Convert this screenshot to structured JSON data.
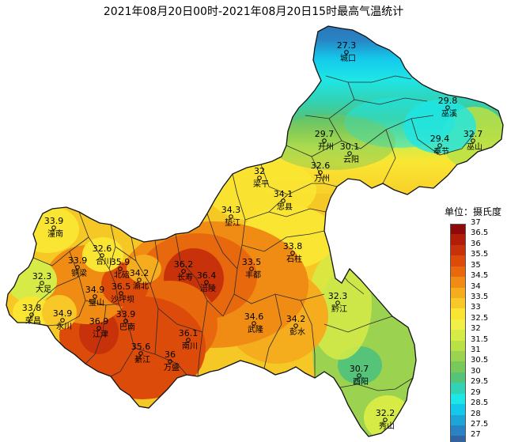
{
  "title": "2021年08月20日00时-2021年08月20日15时最高气温统计",
  "legend": {
    "title": "单位：摄氏度",
    "items": [
      {
        "label": "37",
        "color": "#8c0a0a"
      },
      {
        "label": "36.5",
        "color": "#b01e0a"
      },
      {
        "label": "36",
        "color": "#c8320a"
      },
      {
        "label": "35.5",
        "color": "#dc4b0a"
      },
      {
        "label": "35",
        "color": "#e8690d"
      },
      {
        "label": "34.5",
        "color": "#f08c14"
      },
      {
        "label": "34",
        "color": "#f5ad1e"
      },
      {
        "label": "33.5",
        "color": "#f8c828"
      },
      {
        "label": "33",
        "color": "#fae632"
      },
      {
        "label": "32.5",
        "color": "#f0f046"
      },
      {
        "label": "32",
        "color": "#d7eb46"
      },
      {
        "label": "31.5",
        "color": "#b9e146"
      },
      {
        "label": "31",
        "color": "#9bd250"
      },
      {
        "label": "30.5",
        "color": "#78c85a"
      },
      {
        "label": "30",
        "color": "#55c378"
      },
      {
        "label": "29.5",
        "color": "#32d2b4"
      },
      {
        "label": "29",
        "color": "#1ee6e6"
      },
      {
        "label": "28.5",
        "color": "#14c8eb"
      },
      {
        "label": "28",
        "color": "#1ea5d7"
      },
      {
        "label": "27.5",
        "color": "#2882c3"
      },
      {
        "label": "27",
        "color": "#3264a0"
      }
    ]
  },
  "stations": [
    {
      "name": "城口",
      "value": "27.3"
    },
    {
      "name": "巫溪",
      "value": "29.8"
    },
    {
      "name": "开州",
      "value": "29.7"
    },
    {
      "name": "巫山",
      "value": "32.7"
    },
    {
      "name": "奉节",
      "value": "29.4"
    },
    {
      "name": "云阳",
      "value": "30.1"
    },
    {
      "name": "万州",
      "value": "32.6"
    },
    {
      "name": "梁平",
      "value": "32"
    },
    {
      "name": "垫江",
      "value": "34.3"
    },
    {
      "name": "忠县",
      "value": "34.1"
    },
    {
      "name": "石柱",
      "value": "33.8"
    },
    {
      "name": "丰都",
      "value": "33.5"
    },
    {
      "name": "长寿",
      "value": "36.2"
    },
    {
      "name": "涪陵",
      "value": "36.4"
    },
    {
      "name": "潼南",
      "value": "33.9"
    },
    {
      "name": "合川",
      "value": "32.6"
    },
    {
      "name": "铜梁",
      "value": "33.9"
    },
    {
      "name": "北碚",
      "value": "35.9"
    },
    {
      "name": "渝北",
      "value": "34.2"
    },
    {
      "name": "大足",
      "value": "32.3"
    },
    {
      "name": "璧山",
      "value": "34.9"
    },
    {
      "name": "沙坪坝",
      "value": "36.5"
    },
    {
      "name": "荣昌",
      "value": "33.8"
    },
    {
      "name": "永川",
      "value": "34.9"
    },
    {
      "name": "江津",
      "value": "36.9"
    },
    {
      "name": "巴南",
      "value": "33.9"
    },
    {
      "name": "綦江",
      "value": "35.6"
    },
    {
      "name": "南川",
      "value": "36.1"
    },
    {
      "name": "万盛",
      "value": "36"
    },
    {
      "name": "武隆",
      "value": "34.6"
    },
    {
      "name": "彭水",
      "value": "34.2"
    },
    {
      "name": "黔江",
      "value": "32.3"
    },
    {
      "name": "酉阳",
      "value": "30.7"
    },
    {
      "name": "秀山",
      "value": "32.2"
    }
  ]
}
